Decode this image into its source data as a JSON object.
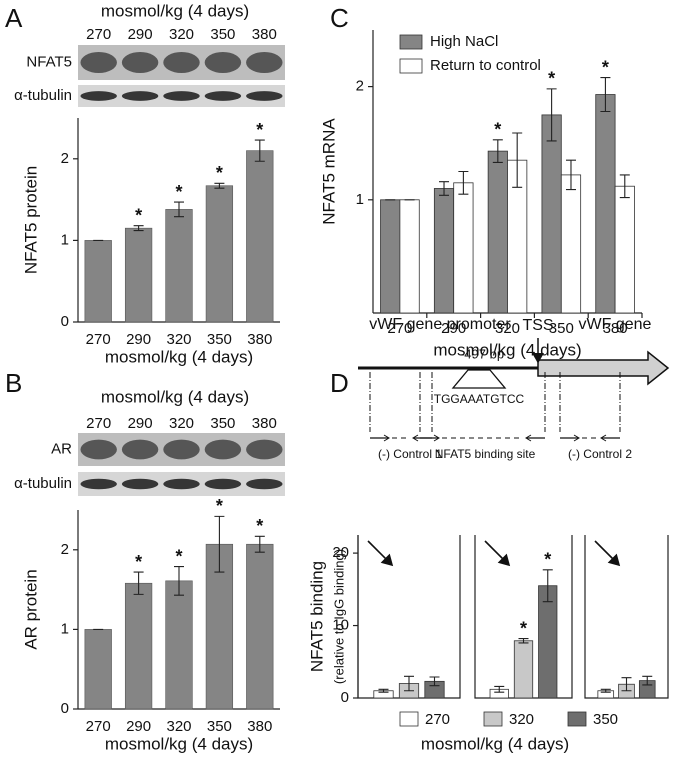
{
  "chart_data": [
    {
      "type": "bar",
      "panel_label": "A",
      "blot": {
        "header": "mosmol/kg (4 days)",
        "lanes": [
          "270",
          "290",
          "320",
          "350",
          "380"
        ],
        "rows": [
          "NFAT5",
          "α-tubulin"
        ]
      },
      "categories": [
        "270",
        "290",
        "320",
        "350",
        "380"
      ],
      "values": [
        1,
        1.15,
        1.38,
        1.67,
        2.1
      ],
      "errors": [
        0,
        0.03,
        0.09,
        0.03,
        0.13
      ],
      "significance": [
        null,
        "*",
        "*",
        "*",
        "*"
      ],
      "color": "#858585",
      "ylim": [
        0,
        2.5
      ],
      "yticks": [
        0,
        1,
        2
      ],
      "xlabel": "mosmol/kg (4 days)",
      "ylabel": "NFAT5 protein"
    },
    {
      "type": "bar",
      "panel_label": "B",
      "blot": {
        "header": "mosmol/kg (4 days)",
        "lanes": [
          "270",
          "290",
          "320",
          "350",
          "380"
        ],
        "rows": [
          "AR",
          "α-tubulin"
        ]
      },
      "categories": [
        "270",
        "290",
        "320",
        "350",
        "380"
      ],
      "values": [
        1,
        1.58,
        1.61,
        2.07,
        2.07
      ],
      "errors": [
        0,
        0.14,
        0.18,
        0.35,
        0.1
      ],
      "significance": [
        null,
        "*",
        "*",
        "*",
        "*"
      ],
      "color": "#858585",
      "ylim": [
        0,
        2.5
      ],
      "yticks": [
        0,
        1,
        2
      ],
      "xlabel": "mosmol/kg (4 days)",
      "ylabel": "AR protein"
    },
    {
      "type": "grouped_bar",
      "panel_label": "C",
      "categories": [
        "270",
        "290",
        "320",
        "350",
        "380"
      ],
      "series": [
        {
          "name": "High NaCl",
          "color": "#858585",
          "values": [
            1,
            1.1,
            1.43,
            1.75,
            1.93
          ],
          "errors": [
            0,
            0.06,
            0.1,
            0.23,
            0.15
          ],
          "significance": [
            null,
            null,
            "*",
            "*",
            "*"
          ]
        },
        {
          "name": "Return to control",
          "color": "#ffffff",
          "values": [
            1,
            1.15,
            1.35,
            1.22,
            1.12
          ],
          "errors": [
            0,
            0.1,
            0.24,
            0.13,
            0.1
          ]
        }
      ],
      "ylim": [
        0,
        2.5
      ],
      "yticks": [
        1,
        2
      ],
      "legend": "upper left",
      "xlabel": "mosmol/kg (4 days)",
      "ylabel": "NFAT5 mRNA"
    },
    {
      "type": "faceted_bar",
      "panel_label": "D",
      "diagram": {
        "promoter": "vWF gene promoter",
        "position": "-497 bp",
        "tss": "TSS",
        "gene": "vWF gene",
        "motif": "TGGAAATGTCC"
      },
      "categories": [
        "(-) Control 1",
        "NFAT5 binding site",
        "(-) Control 2"
      ],
      "series": [
        {
          "name": "270",
          "color": "#ffffff",
          "values": [
            1.0,
            1.2,
            1.0
          ],
          "errors": [
            0.2,
            0.4,
            0.2
          ]
        },
        {
          "name": "320",
          "color": "#c8c8c8",
          "values": [
            2.0,
            7.9,
            1.9
          ],
          "errors": [
            1.0,
            0.3,
            0.9
          ],
          "significance": [
            null,
            "*",
            null
          ]
        },
        {
          "name": "350",
          "color": "#6e6e6e",
          "values": [
            2.3,
            15.5,
            2.4
          ],
          "errors": [
            0.6,
            2.2,
            0.6
          ],
          "significance": [
            null,
            "*",
            null
          ]
        }
      ],
      "ylim": [
        0,
        22.5
      ],
      "yticks": [
        0,
        10,
        20
      ],
      "legend": "bottom",
      "xlabel": "mosmol/kg (4 days)",
      "ylabel": [
        "NFAT5 binding",
        "(relative to IgG binding)"
      ]
    }
  ]
}
